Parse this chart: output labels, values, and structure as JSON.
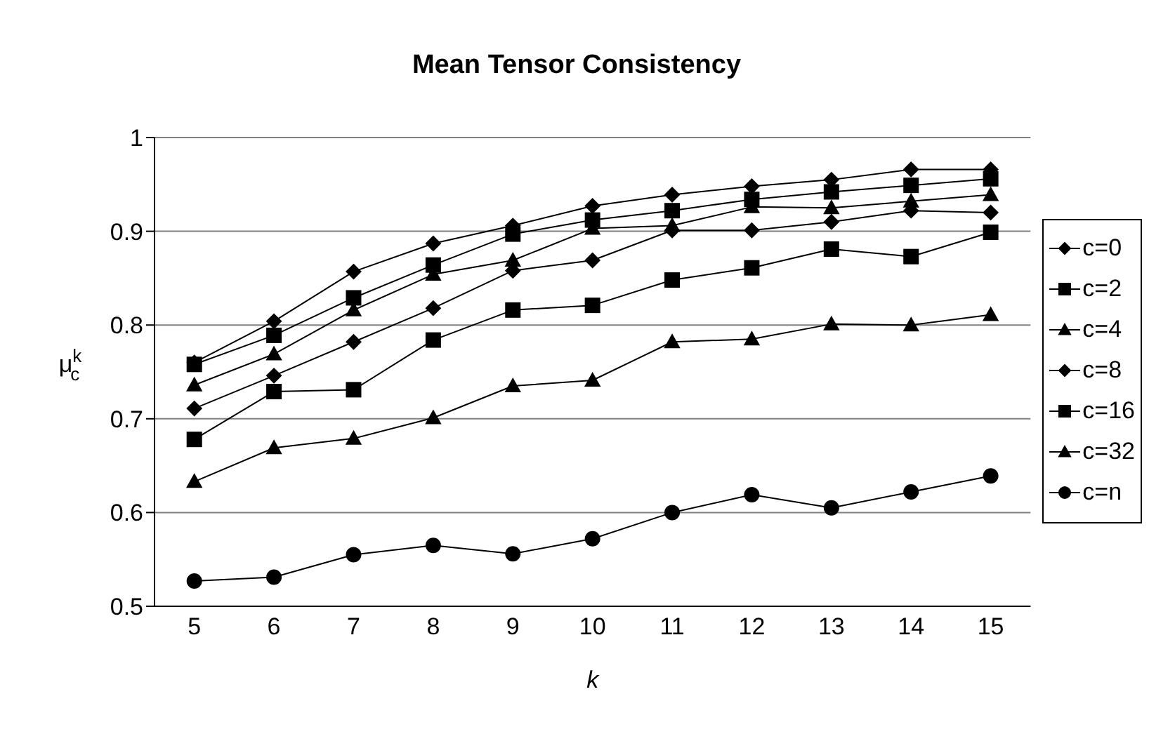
{
  "chart_data": {
    "type": "line",
    "title": "Mean Tensor Consistency",
    "xlabel": "k",
    "ylabel": "μ$^{k}$$_{c}$",
    "categories": [
      "5",
      "6",
      "7",
      "8",
      "9",
      "10",
      "11",
      "12",
      "13",
      "14",
      "15"
    ],
    "series": [
      {
        "name": "c=0",
        "color": "#000000",
        "marker": "diamond",
        "values": [
          0.76,
          0.804,
          0.857,
          0.887,
          0.906,
          0.927,
          0.939,
          0.948,
          0.955,
          0.966,
          0.966
        ]
      },
      {
        "name": "c=2",
        "color": "#000000",
        "marker": "square",
        "values": [
          0.758,
          0.789,
          0.829,
          0.864,
          0.897,
          0.912,
          0.922,
          0.934,
          0.942,
          0.949,
          0.956
        ]
      },
      {
        "name": "c=4",
        "color": "#000000",
        "marker": "triangle",
        "values": [
          0.736,
          0.769,
          0.816,
          0.854,
          0.869,
          0.903,
          0.906,
          0.926,
          0.925,
          0.932,
          0.939
        ]
      },
      {
        "name": "c=8",
        "color": "#000000",
        "marker": "diamond",
        "values": [
          0.711,
          0.746,
          0.782,
          0.818,
          0.858,
          0.869,
          0.901,
          0.901,
          0.91,
          0.922,
          0.92
        ]
      },
      {
        "name": "c=16",
        "color": "#000000",
        "marker": "square",
        "values": [
          0.678,
          0.729,
          0.731,
          0.784,
          0.816,
          0.821,
          0.848,
          0.861,
          0.881,
          0.873,
          0.899
        ]
      },
      {
        "name": "c=32",
        "color": "#000000",
        "marker": "triangle",
        "values": [
          0.633,
          0.669,
          0.679,
          0.701,
          0.735,
          0.741,
          0.782,
          0.785,
          0.801,
          0.8,
          0.811
        ]
      },
      {
        "name": "c=n",
        "color": "#000000",
        "marker": "circle",
        "values": [
          0.527,
          0.531,
          0.555,
          0.565,
          0.556,
          0.572,
          0.6,
          0.619,
          0.605,
          0.622,
          0.639
        ]
      }
    ],
    "ylim": [
      0.5,
      1
    ],
    "yticks": [
      0.5,
      0.6,
      0.7,
      0.8,
      0.9,
      1
    ],
    "grid": "y",
    "legend": "right"
  }
}
